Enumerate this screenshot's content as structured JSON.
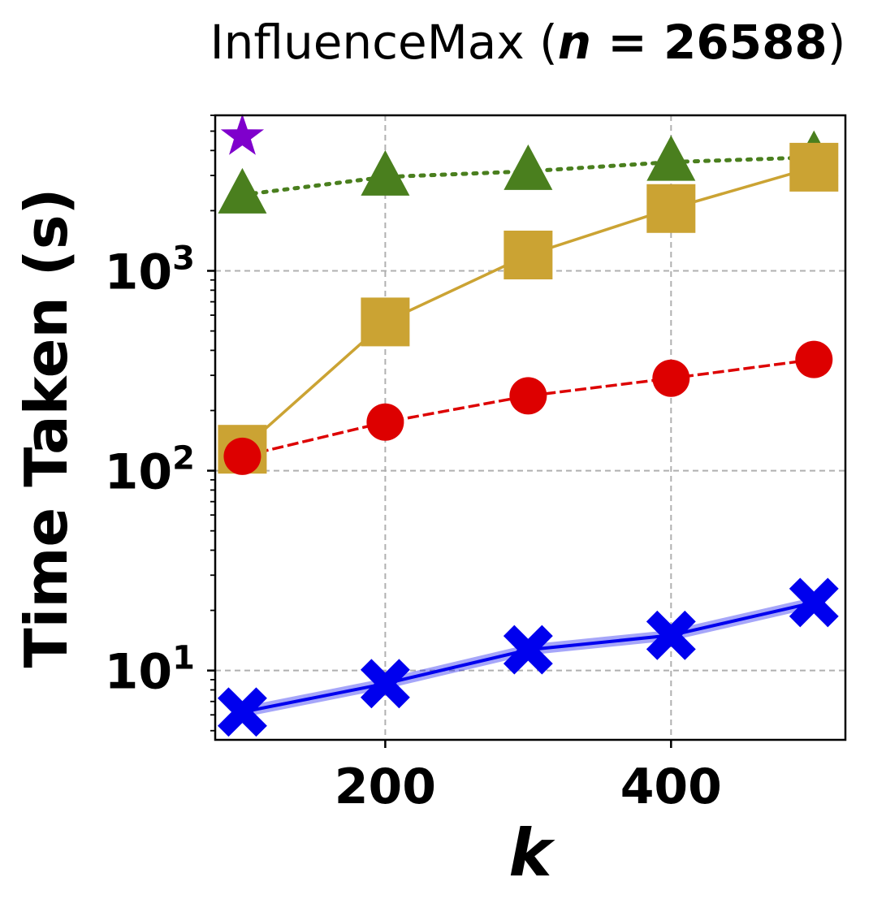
{
  "chart_data": {
    "type": "line",
    "title": {
      "prefix": "InfluenceMax (",
      "italic_var": "n",
      "equals_value": " = 26588",
      "suffix": ")"
    },
    "xlabel": "k",
    "ylabel": "Time Taken (s)",
    "x_ticks": [
      200,
      400
    ],
    "y_scale": "log",
    "y_ticks": [
      {
        "value": 10,
        "base": "10",
        "exp": "1"
      },
      {
        "value": 100,
        "base": "10",
        "exp": "2"
      },
      {
        "value": 1000,
        "base": "10",
        "exp": "3"
      }
    ],
    "xlim": [
      81,
      522
    ],
    "ylim": [
      4.5,
      6000
    ],
    "grid": true,
    "x": [
      100,
      200,
      300,
      400,
      500
    ],
    "series": [
      {
        "color": "#4a7f1e",
        "marker": "triangle",
        "linestyle": "dotted",
        "values": [
          2400,
          2950,
          3150,
          3500,
          3700
        ]
      },
      {
        "color": "#cba333",
        "marker": "square",
        "linestyle": "solid",
        "values": [
          128,
          555,
          1200,
          2050,
          3300
        ]
      },
      {
        "color": "#dd0000",
        "marker": "circle",
        "linestyle": "dashed",
        "values": [
          118,
          175,
          237,
          290,
          360
        ]
      },
      {
        "color": "#0000ee",
        "marker": "x",
        "linestyle": "solid",
        "values": [
          6.2,
          8.6,
          12.7,
          15.0,
          21.9
        ]
      },
      {
        "color": "#7f00cc",
        "marker": "star",
        "linestyle": "none",
        "values": [
          4700,
          null,
          null,
          null,
          null
        ]
      }
    ]
  }
}
